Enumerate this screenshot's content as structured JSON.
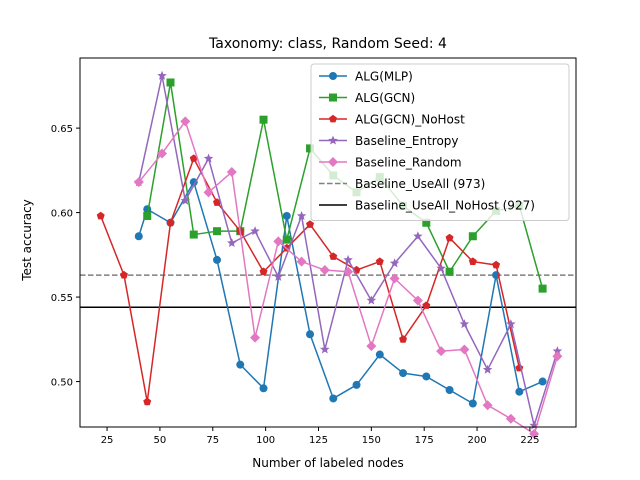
{
  "chart_data": {
    "type": "line",
    "title": "Taxonomy: class, Random Seed: 4",
    "xlabel": "Number of labeled nodes",
    "ylabel": "Test accuracy",
    "xlim": [
      12.2,
      246.8
    ],
    "ylim": [
      0.4731,
      0.6915
    ],
    "xticks": [
      25,
      50,
      75,
      100,
      125,
      150,
      175,
      200,
      225
    ],
    "yticks": [
      0.5,
      0.55,
      0.6,
      0.65
    ],
    "xtick_labels": [
      "25",
      "50",
      "75",
      "100",
      "125",
      "150",
      "175",
      "200",
      "225"
    ],
    "ytick_labels": [
      "0.50",
      "0.55",
      "0.60",
      "0.65"
    ],
    "grid": false,
    "legend_position": "top-right",
    "series": [
      {
        "name": "ALG(MLP)",
        "color": "#1f77b4",
        "marker": "circle",
        "x": [
          40,
          44,
          55,
          66,
          77,
          88,
          99,
          110,
          121,
          132,
          143,
          154,
          165,
          176,
          187,
          198,
          209,
          220,
          231
        ],
        "y": [
          0.586,
          0.602,
          0.594,
          0.618,
          0.572,
          0.51,
          0.496,
          0.598,
          0.528,
          0.49,
          0.498,
          0.516,
          0.505,
          0.503,
          0.495,
          0.487,
          0.563,
          0.494,
          0.5
        ]
      },
      {
        "name": "ALG(GCN)",
        "color": "#2ca02c",
        "marker": "square",
        "x": [
          44,
          55,
          66,
          77,
          88,
          99,
          110,
          121,
          132,
          143,
          154,
          165,
          176,
          187,
          198,
          209,
          220,
          231
        ],
        "y": [
          0.598,
          0.677,
          0.587,
          0.589,
          0.589,
          0.655,
          0.584,
          0.638,
          0.622,
          0.612,
          0.621,
          0.604,
          0.594,
          0.565,
          0.586,
          0.601,
          0.604,
          0.555
        ]
      },
      {
        "name": "ALG(GCN)_NoHost",
        "color": "#d62728",
        "marker": "pentagon",
        "x": [
          22,
          33,
          44,
          55,
          66,
          77,
          88,
          99,
          110,
          121,
          132,
          143,
          154,
          165,
          176,
          187,
          198,
          209,
          220
        ],
        "y": [
          0.598,
          0.563,
          0.488,
          0.594,
          0.632,
          0.606,
          0.589,
          0.565,
          0.579,
          0.593,
          0.574,
          0.566,
          0.571,
          0.525,
          0.545,
          0.585,
          0.571,
          0.569,
          0.508
        ]
      },
      {
        "name": "Baseline_Entropy",
        "color": "#9467bd",
        "marker": "star",
        "x": [
          40,
          51,
          62,
          73,
          84,
          95,
          106,
          117,
          128,
          139,
          150,
          161,
          172,
          183,
          194,
          205,
          216,
          227,
          238
        ],
        "y": [
          0.618,
          0.681,
          0.607,
          0.632,
          0.582,
          0.589,
          0.562,
          0.598,
          0.519,
          0.572,
          0.548,
          0.57,
          0.586,
          0.567,
          0.534,
          0.507,
          0.534,
          0.474,
          0.518
        ]
      },
      {
        "name": "Baseline_Random",
        "color": "#e377c2",
        "marker": "diamond",
        "x": [
          40,
          51,
          62,
          73,
          84,
          95,
          106,
          117,
          128,
          139,
          150,
          161,
          172,
          183,
          194,
          205,
          216,
          227,
          238
        ],
        "y": [
          0.618,
          0.635,
          0.654,
          0.612,
          0.624,
          0.526,
          0.583,
          0.571,
          0.566,
          0.565,
          0.521,
          0.561,
          0.548,
          0.518,
          0.519,
          0.486,
          0.478,
          0.469,
          0.515
        ]
      }
    ],
    "reference_lines": [
      {
        "name": "Baseline_UseAll (973)",
        "y": 0.563,
        "color": "#7f7f7f",
        "style": "dashed"
      },
      {
        "name": "Baseline_UseAll_NoHost (927)",
        "y": 0.544,
        "color": "#000000",
        "style": "solid"
      }
    ]
  }
}
